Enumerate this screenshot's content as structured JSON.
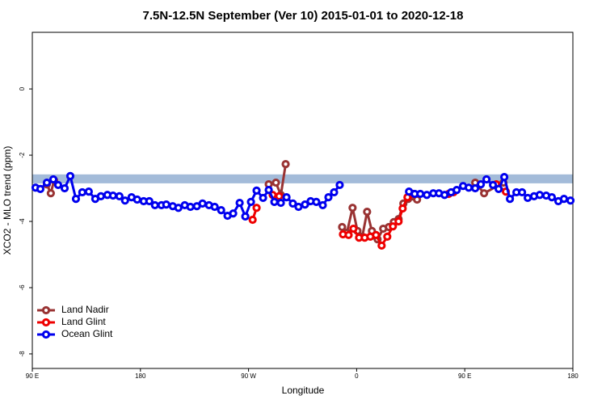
{
  "chart_data": {
    "type": "line",
    "title": "7.5N-12.5N September (Ver 10)   2015-01-01 to 2020-12-18",
    "xlabel": "Longitude",
    "ylabel": "XCO2 - MLO trend (ppm)",
    "xlim": [
      90,
      540
    ],
    "xticks": [
      {
        "value": 90,
        "label": "90 E"
      },
      180,
      {
        "value": 270,
        "label": "90 W"
      },
      {
        "value": 360,
        "label": "0"
      },
      {
        "value": 450,
        "label": "90 E"
      },
      {
        "value": 540,
        "label": "180"
      }
    ],
    "ylim": [
      -8.44,
      1.71
    ],
    "yticks": [
      0,
      -2,
      -4,
      -6,
      -8
    ],
    "band": [
      -2.85,
      -2.58
    ],
    "band_color": "#a3bbd9",
    "legend": "bottom-left",
    "series": [
      {
        "name": "Land Nadir",
        "color": "#993333",
        "x": [
          102.1,
          105.4,
          108.1,
          115,
          286.8,
          292.8,
          296.9,
          300.9,
          320,
          347.9,
          351.9,
          356.6,
          360.7,
          364.7,
          368.7,
          372.7,
          377.4,
          382.1,
          386.8,
          390.9,
          394.9,
          398.9,
          402.9,
          410.3,
          450,
          458.7,
          466.1,
          482.2
        ],
        "values": [
          -2.88,
          -3.15,
          -2.76,
          null,
          -2.88,
          -2.83,
          -3.2,
          -2.27,
          null,
          -4.17,
          -4.34,
          -3.59,
          -4.29,
          -4.46,
          -3.71,
          -4.29,
          -4.54,
          -4.22,
          -4.17,
          -4.02,
          -3.93,
          -3.46,
          -3.32,
          -3.34,
          null,
          -2.83,
          -3.15,
          -2.83
        ]
      },
      {
        "name": "Land Glint",
        "color": "#ee0000",
        "x": [
          273.4,
          276.7,
          280,
          290.1,
          295.5,
          320,
          348.6,
          353.3,
          357.3,
          362.0,
          366.7,
          371.4,
          376.1,
          380.8,
          385.5,
          390.2,
          394.9,
          398.3,
          402.3,
          407.0,
          420,
          436.6,
          440.6,
          460,
          476.2,
          484.2
        ],
        "values": [
          -3.95,
          -3.59,
          null,
          -3.2,
          -3.24,
          null,
          -4.39,
          -4.41,
          -4.22,
          -4.49,
          -4.49,
          -4.46,
          -4.41,
          -4.73,
          -4.46,
          -4.15,
          -4.0,
          -3.61,
          -3.27,
          -3.17,
          null,
          -3.17,
          -3.12,
          null,
          -2.88,
          -3.1
        ]
      },
      {
        "name": "Ocean Glint",
        "color": "#0000ee",
        "x": [
          92.7,
          96.7,
          102.1,
          107.5,
          111.5,
          116.9,
          121.6,
          126.3,
          131.6,
          137.0,
          142.4,
          147.1,
          152.5,
          157.2,
          162.5,
          167.2,
          172.6,
          177.3,
          182.7,
          187.4,
          192.1,
          197.5,
          201.5,
          206.9,
          211.6,
          216.9,
          221.6,
          227.0,
          231.7,
          237.1,
          241.8,
          247.2,
          252.5,
          257.2,
          262.6,
          267.3,
          272.0,
          276.7,
          282.1,
          286.8,
          291.5,
          296.9,
          301.6,
          306.9,
          311.6,
          317.0,
          321.7,
          326.4,
          331.8,
          336.5,
          341.2,
          345.9,
          375,
          403.6,
          408.3,
          413.0,
          418.4,
          423.8,
          428.5,
          433.2,
          438.6,
          443.3,
          448.6,
          453.3,
          458.7,
          463.4,
          468.1,
          473.5,
          478.2,
          482.9,
          487.6,
          493.0,
          497.7,
          502.4,
          507.7,
          512.4,
          517.8,
          522.5,
          527.9,
          532.6,
          538.0
        ],
        "values": [
          -2.98,
          -3.02,
          -2.83,
          -2.73,
          -2.9,
          -3.0,
          -2.63,
          -3.32,
          -3.12,
          -3.1,
          -3.32,
          -3.24,
          -3.2,
          -3.22,
          -3.24,
          -3.37,
          -3.27,
          -3.34,
          -3.39,
          -3.39,
          -3.51,
          -3.51,
          -3.49,
          -3.54,
          -3.59,
          -3.51,
          -3.56,
          -3.54,
          -3.46,
          -3.51,
          -3.56,
          -3.66,
          -3.83,
          -3.76,
          -3.44,
          -3.85,
          -3.41,
          -3.07,
          -3.29,
          -3.05,
          -3.41,
          -3.44,
          -3.27,
          -3.46,
          -3.56,
          -3.49,
          -3.39,
          -3.41,
          -3.51,
          -3.27,
          -3.12,
          -2.9,
          null,
          -3.1,
          -3.17,
          -3.17,
          -3.2,
          -3.15,
          -3.15,
          -3.2,
          -3.12,
          -3.05,
          -2.93,
          -2.98,
          -3.0,
          -2.88,
          -2.73,
          -2.9,
          -3.02,
          -2.66,
          -3.32,
          -3.12,
          -3.12,
          -3.29,
          -3.24,
          -3.2,
          -3.22,
          -3.27,
          -3.39,
          -3.32,
          -3.37
        ]
      }
    ]
  }
}
